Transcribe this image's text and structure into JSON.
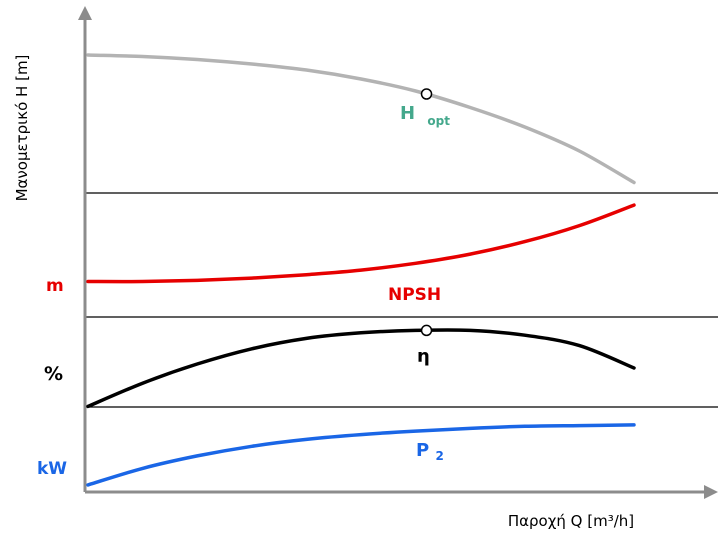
{
  "chart_data": {
    "type": "line",
    "xlabel": "Παροχή  Q [m³/h]",
    "ylabel": "Μανομετρικό  Η [m]",
    "panels": [
      {
        "id": "head",
        "unit_label": "",
        "series": [
          {
            "name": "H",
            "subscript": "opt",
            "color": "#b3b3b3",
            "label_color": "#44a88c",
            "x": [
              0,
              0.1,
              0.2,
              0.3,
              0.4,
              0.5,
              0.6,
              0.7,
              0.8,
              0.9,
              1.0
            ],
            "y": [
              0.9,
              0.89,
              0.87,
              0.84,
              0.8,
              0.74,
              0.66,
              0.55,
              0.42,
              0.26,
              0.05
            ],
            "opt_point": {
              "x": 0.62,
              "y": 0.64
            }
          }
        ]
      },
      {
        "id": "npsh",
        "unit_label": "m",
        "unit_color": "#e60000",
        "series": [
          {
            "name": "NPSH",
            "color": "#e60000",
            "label_color": "#e60000",
            "x": [
              0,
              0.1,
              0.2,
              0.3,
              0.4,
              0.5,
              0.6,
              0.7,
              0.8,
              0.9,
              1.0
            ],
            "y": [
              0.25,
              0.25,
              0.26,
              0.28,
              0.31,
              0.35,
              0.41,
              0.49,
              0.6,
              0.74,
              0.92
            ]
          }
        ]
      },
      {
        "id": "efficiency",
        "unit_label": "%",
        "unit_color": "#000000",
        "series": [
          {
            "name": "η",
            "color": "#000000",
            "label_color": "#000000",
            "x": [
              0,
              0.1,
              0.2,
              0.3,
              0.4,
              0.5,
              0.6,
              0.7,
              0.8,
              0.9,
              1.0
            ],
            "y": [
              0.02,
              0.31,
              0.55,
              0.74,
              0.87,
              0.94,
              0.97,
              0.97,
              0.91,
              0.78,
              0.5
            ],
            "opt_point": {
              "x": 0.62,
              "y": 0.97
            }
          }
        ]
      },
      {
        "id": "power",
        "unit_label": "kW",
        "unit_color": "#1a66e6",
        "series": [
          {
            "name": "P",
            "subscript": "2",
            "color": "#1a66e6",
            "label_color": "#1a66e6",
            "x": [
              0,
              0.1,
              0.2,
              0.3,
              0.4,
              0.5,
              0.6,
              0.7,
              0.8,
              0.9,
              1.0
            ],
            "y": [
              0.03,
              0.27,
              0.45,
              0.59,
              0.69,
              0.76,
              0.81,
              0.85,
              0.88,
              0.89,
              0.9
            ]
          }
        ]
      }
    ],
    "grid": false,
    "legend": "none"
  }
}
